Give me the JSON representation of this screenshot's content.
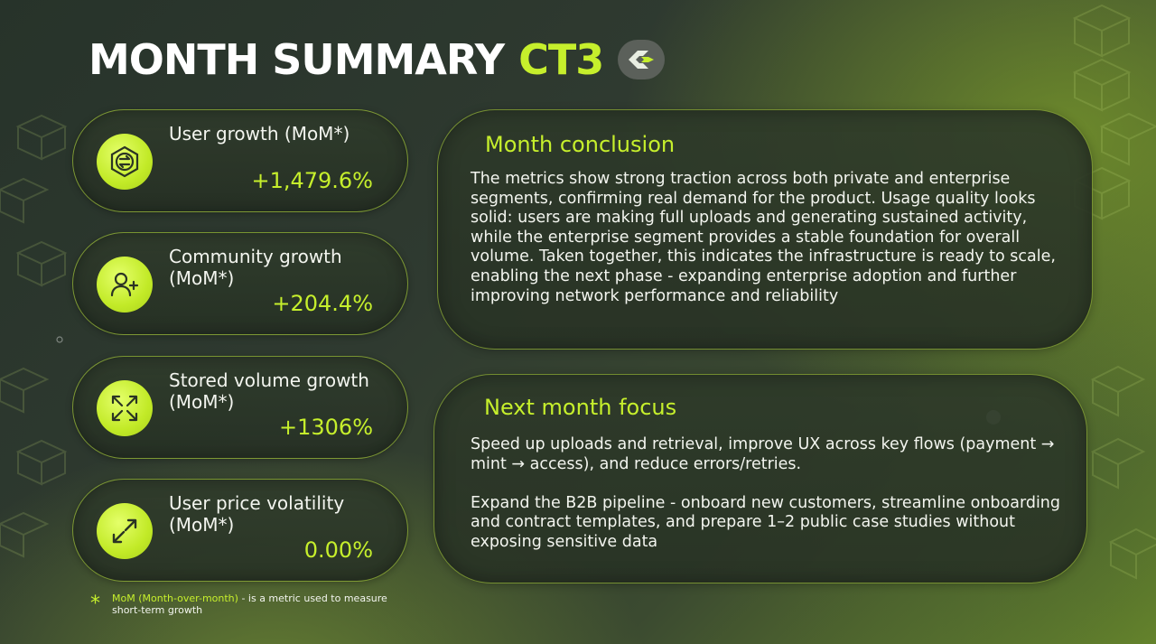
{
  "header": {
    "title": "MONTH SUMMARY",
    "brand": "CT3",
    "logo_icon": "ct3-logo-icon"
  },
  "metrics": [
    {
      "label": "User growth (MoM*)",
      "value": "+1,479.6%",
      "icon": "user-growth-icon"
    },
    {
      "label": "Community growth (MoM*)",
      "value": "+204.4%",
      "icon": "user-add-icon"
    },
    {
      "label": "Stored volume growth (MoM*)",
      "value": "+1306%",
      "icon": "expand-arrows-icon"
    },
    {
      "label": "User price volatility (MoM*)",
      "value": "0.00%",
      "icon": "diagonal-arrows-icon"
    }
  ],
  "conclusion": {
    "title": "Month conclusion",
    "text": "The metrics show strong traction across both private and enterprise segments, confirming real demand for the product. Usage quality looks solid: users are making full uploads and generating sustained activity, while the enterprise segment provides a stable foundation for overall volume. Taken together, this indicates the infrastructure is ready to scale, enabling the next phase - expanding enterprise adoption and further improving network performance and reliability"
  },
  "focus": {
    "title": "Next month focus",
    "paragraphs": [
      "Speed up uploads and retrieval, improve UX across key flows (payment → mint → access), and reduce errors/retries.",
      "Expand the B2B pipeline - onboard new customers, streamline onboarding and contract templates, and prepare 1–2 public case studies without exposing sensitive data"
    ]
  },
  "footnote": {
    "symbol": "*",
    "term": "MoM (Month-over-month)",
    "definition": " - is a metric used to measure short-term growth"
  },
  "colors": {
    "accent": "#c6ef2c",
    "text": "#f3f5ef",
    "panel": "#2e3a2a"
  }
}
